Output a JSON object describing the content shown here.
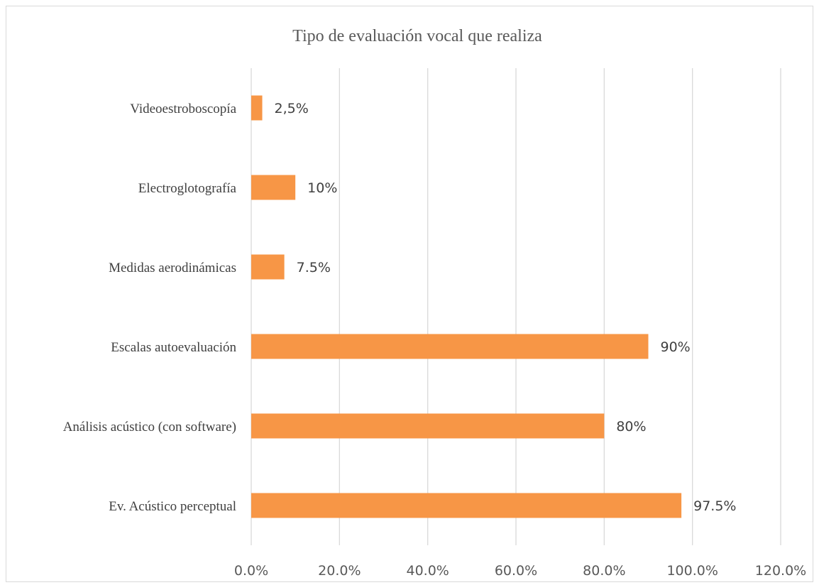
{
  "chart_data": {
    "type": "bar",
    "orientation": "horizontal",
    "title": "Tipo de evaluación vocal que realiza",
    "xlabel": "",
    "ylabel": "",
    "xlim": [
      0,
      120
    ],
    "x_ticks": [
      "0.0%",
      "20.0%",
      "40.0%",
      "60.0%",
      "80.0%",
      "100.0%",
      "120.0%"
    ],
    "x_tick_values": [
      0,
      20,
      40,
      60,
      80,
      100,
      120
    ],
    "grid": true,
    "bar_color": "#F79646",
    "categories": [
      "Videoestroboscopía",
      "Electroglotografía",
      "Medidas aerodinámicas",
      "Escalas autoevaluación",
      "Análisis acústico (con software)",
      "Ev. Acústico perceptual"
    ],
    "values": [
      2.5,
      10,
      7.5,
      90,
      80,
      97.5
    ],
    "data_labels": [
      "2,5%",
      "10%",
      "7.5%",
      "90%",
      "80%",
      "97.5%"
    ]
  }
}
